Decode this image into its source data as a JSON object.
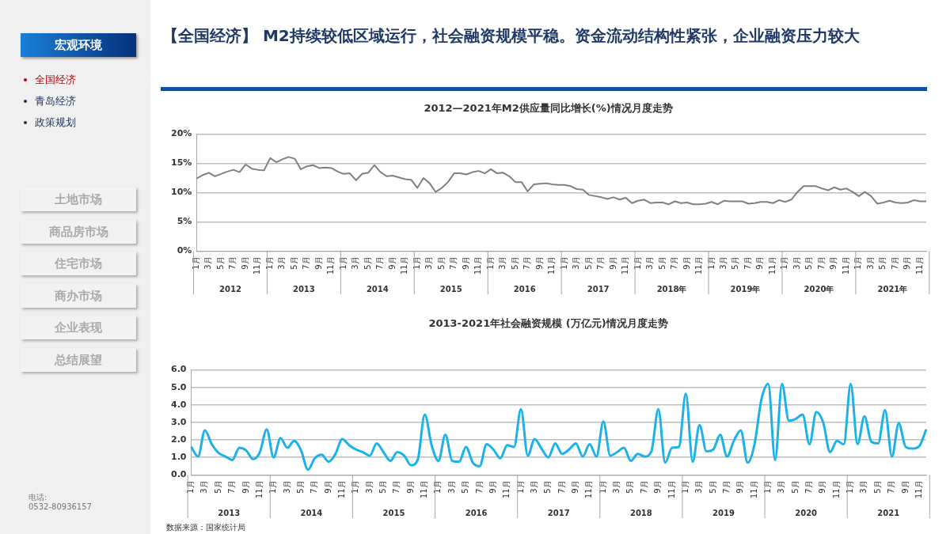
{
  "chart_data": [
    {
      "type": "other",
      "title": "【全国经济】 M2持续较低区域运行，社会融资规模平稳。资金流动结构性紧张，企业融资压力较大",
      "annotations": [
        "宏观环境",
        "全国经济",
        "青岛经济",
        "政策规划",
        "土地市场",
        "商品房市场",
        "住宅市场",
        "商办市场",
        "企业表现",
        "总结展望",
        "电话:",
        "0532-80936157"
      ]
    },
    {
      "type": "line",
      "title": "2012—2021年M2供应量同比增长(%)情况月度走势",
      "categories": [
        "1月",
        null,
        "3月",
        null,
        "5月",
        null,
        "7月",
        null,
        "9月",
        null,
        "11月",
        null,
        "1月",
        null,
        "3月",
        null,
        "5月",
        null,
        "7月",
        null,
        "9月",
        null,
        "11月",
        null,
        "1月",
        null,
        "3月",
        null,
        "5月",
        null,
        "7月",
        null,
        "9月",
        null,
        "11月",
        null,
        "1月",
        null,
        "3月",
        null,
        "5月",
        null,
        "7月",
        null,
        "9月",
        null,
        "11月",
        null,
        "1月",
        null,
        "3月",
        null,
        "5月",
        null,
        "7月",
        null,
        "9月",
        null,
        "11月",
        null,
        "1月",
        null,
        "3月",
        null,
        "5月",
        null,
        "7月",
        null,
        "9月",
        null,
        "11月",
        null,
        "1月",
        null,
        "3月",
        null,
        "5月",
        null,
        "7月",
        null,
        "9月",
        null,
        "11月",
        null,
        "1月",
        null,
        "3月",
        null,
        "5月",
        null,
        "7月",
        null,
        "9月",
        null,
        "11月",
        null,
        "1月",
        null,
        "3月",
        null,
        "5月",
        null,
        "7月",
        null,
        "9月",
        null,
        "11月",
        null,
        "1月",
        null,
        "3月",
        null,
        "5月",
        null,
        "7月",
        null,
        "9月",
        null,
        "11月",
        null
      ],
      "series": [
        {
          "color": "#808080",
          "values": [
            12.4,
            13.0,
            13.4,
            12.8,
            13.2,
            13.6,
            13.9,
            13.5,
            14.8,
            14.1,
            13.9,
            13.8,
            15.9,
            15.2,
            15.7,
            16.1,
            15.8,
            14.0,
            14.5,
            14.7,
            14.2,
            14.3,
            14.2,
            13.6,
            13.2,
            13.3,
            12.1,
            13.2,
            13.4,
            14.7,
            13.5,
            12.8,
            12.9,
            12.6,
            12.3,
            12.2,
            10.8,
            12.5,
            11.6,
            10.1,
            10.8,
            11.8,
            13.3,
            13.3,
            13.1,
            13.5,
            13.7,
            13.3,
            14.0,
            13.3,
            13.4,
            12.8,
            11.8,
            11.8,
            10.2,
            11.4,
            11.5,
            11.6,
            11.4,
            11.3,
            11.3,
            11.1,
            10.6,
            10.5,
            9.6,
            9.4,
            9.2,
            8.9,
            9.2,
            8.8,
            9.1,
            8.2,
            8.6,
            8.8,
            8.2,
            8.3,
            8.3,
            8.0,
            8.5,
            8.2,
            8.3,
            8.0,
            8.0,
            8.1,
            8.4,
            8.0,
            8.6,
            8.5,
            8.5,
            8.5,
            8.1,
            8.2,
            8.4,
            8.4,
            8.2,
            8.7,
            8.4,
            8.8,
            10.1,
            11.1,
            11.1,
            11.1,
            10.7,
            10.4,
            10.9,
            10.5,
            10.7,
            10.1,
            9.4,
            10.1,
            9.4,
            8.1,
            8.3,
            8.6,
            8.3,
            8.2,
            8.3,
            8.7,
            8.5,
            8.5
          ]
        }
      ],
      "ylim": [
        0,
        20
      ],
      "yticks": [
        {
          "value": 0,
          "label": "0%"
        },
        {
          "value": 5,
          "label": "5%"
        },
        {
          "value": 10,
          "label": "10%"
        },
        {
          "value": 15,
          "label": "15%"
        },
        {
          "value": 20,
          "label": "20%"
        }
      ],
      "annotations": [
        "2012",
        "2013",
        "2014",
        "2015",
        "2016",
        "2017",
        "2018年",
        "2019年",
        "2020年",
        "2021年"
      ],
      "grid": "y",
      "marker": "none",
      "line_style": "solid"
    },
    {
      "type": "line",
      "title": "2013-2021年社会融资规模 (万亿元)情况月度走势",
      "categories": [
        "1月",
        null,
        "3月",
        null,
        "5月",
        null,
        "7月",
        null,
        "9月",
        null,
        "11月",
        null,
        "1月",
        null,
        "3月",
        null,
        "5月",
        null,
        "7月",
        null,
        "9月",
        null,
        "11月",
        null,
        "1月",
        null,
        "3月",
        null,
        "5月",
        null,
        "7月",
        null,
        "9月",
        null,
        "11月",
        null,
        "1月",
        null,
        "3月",
        null,
        "5月",
        null,
        "7月",
        null,
        "9月",
        null,
        "11月",
        null,
        "1月",
        null,
        "3月",
        null,
        "5月",
        null,
        "7月",
        null,
        "9月",
        null,
        "11月",
        null,
        "1月",
        null,
        "3月",
        null,
        "5月",
        null,
        "7月",
        null,
        "9月",
        null,
        "11月",
        null,
        "1月",
        null,
        "3月",
        null,
        "5月",
        null,
        "7月",
        null,
        "9月",
        null,
        "11月",
        null,
        "1月",
        null,
        "3月",
        null,
        "5月",
        null,
        "7月",
        null,
        "9月",
        null,
        "11月",
        null,
        "1月",
        null,
        "3月",
        null,
        "5月",
        null,
        "7月",
        null,
        "9月",
        null,
        "11月",
        null
      ],
      "series": [
        {
          "color": "#1ab2e8",
          "values": [
            1.6,
            1.05,
            2.55,
            1.75,
            1.25,
            1.05,
            0.85,
            1.55,
            1.4,
            0.9,
            1.3,
            2.6,
            1.0,
            2.1,
            1.55,
            1.95,
            1.4,
            0.3,
            0.95,
            1.15,
            0.75,
            1.2,
            2.05,
            1.7,
            1.45,
            1.3,
            1.1,
            1.8,
            1.3,
            0.8,
            1.3,
            1.1,
            0.55,
            0.9,
            3.45,
            1.7,
            0.8,
            2.3,
            0.8,
            0.75,
            1.6,
            0.7,
            0.5,
            1.75,
            1.45,
            0.95,
            1.7,
            1.6,
            3.75,
            1.1,
            2.05,
            1.5,
            1.0,
            1.8,
            1.2,
            1.45,
            1.8,
            1.05,
            1.75,
            1.05,
            3.05,
            1.1,
            1.3,
            1.55,
            0.8,
            1.2,
            1.05,
            1.35,
            3.75,
            0.7,
            1.55,
            1.6,
            4.65,
            0.75,
            2.85,
            1.35,
            1.45,
            2.3,
            1.05,
            1.95,
            2.55,
            0.7,
            1.75,
            4.3,
            5.2,
            0.85,
            5.2,
            3.1,
            3.2,
            3.45,
            1.75,
            3.6,
            3.0,
            1.3,
            1.95,
            1.75,
            5.2,
            1.75,
            3.35,
            1.9,
            1.8,
            3.7,
            1.05,
            2.95,
            1.6,
            1.5,
            1.65,
            2.6
          ]
        }
      ],
      "ylim": [
        0,
        6
      ],
      "yticks": [
        {
          "value": 0,
          "label": "0.0"
        },
        {
          "value": 1,
          "label": "1.0"
        },
        {
          "value": 2,
          "label": "2.0"
        },
        {
          "value": 3,
          "label": "3.0"
        },
        {
          "value": 4,
          "label": "4.0"
        },
        {
          "value": 5,
          "label": "5.0"
        },
        {
          "value": 6,
          "label": "6.0"
        }
      ],
      "annotations": [
        "2013",
        "2014",
        "2015",
        "2016",
        "2017",
        "2018",
        "2019",
        "2020",
        "2021",
        "数据来源：国家统计局"
      ],
      "grid": "y",
      "marker": "none",
      "line_style": "solid"
    }
  ]
}
